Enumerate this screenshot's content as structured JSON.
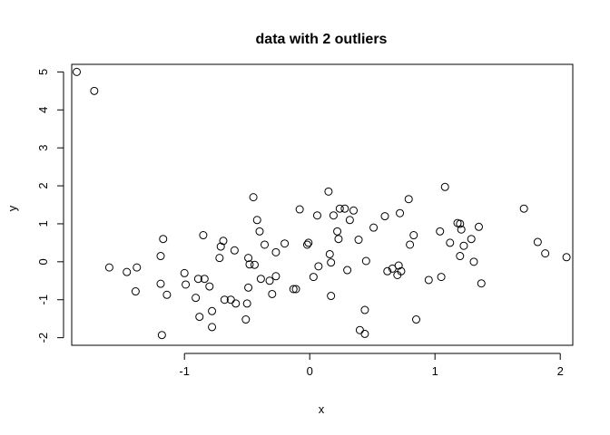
{
  "chart_data": {
    "type": "scatter",
    "title": "data with 2 outliers",
    "xlabel": "x",
    "ylabel": "y",
    "xlim": [
      -1.9,
      2.1
    ],
    "ylim": [
      -2.2,
      5.2
    ],
    "xticks": [
      -1,
      0,
      1,
      2
    ],
    "yticks": [
      -2,
      -1,
      0,
      1,
      2,
      3,
      4,
      5
    ],
    "grid": false,
    "legend": "none",
    "marker": "open-circle",
    "points": [
      [
        -1.86,
        5.0
      ],
      [
        -1.72,
        4.5
      ],
      [
        -1.6,
        -0.15
      ],
      [
        -1.46,
        -0.27
      ],
      [
        -1.39,
        -0.78
      ],
      [
        -1.38,
        -0.15
      ],
      [
        -1.19,
        0.15
      ],
      [
        -1.19,
        -0.58
      ],
      [
        -1.17,
        0.6
      ],
      [
        -1.18,
        -1.93
      ],
      [
        -1.14,
        -0.87
      ],
      [
        -1.0,
        -0.3
      ],
      [
        -0.99,
        -0.6
      ],
      [
        -0.91,
        -0.95
      ],
      [
        -0.89,
        -0.45
      ],
      [
        -0.88,
        -1.45
      ],
      [
        -0.85,
        0.7
      ],
      [
        -0.84,
        -0.45
      ],
      [
        -0.8,
        -0.65
      ],
      [
        -0.78,
        -1.72
      ],
      [
        -0.78,
        -1.3
      ],
      [
        -0.72,
        0.1
      ],
      [
        -0.71,
        0.4
      ],
      [
        -0.69,
        0.55
      ],
      [
        -0.68,
        -1.0
      ],
      [
        -0.63,
        -1.0
      ],
      [
        -0.6,
        0.3
      ],
      [
        -0.59,
        -1.1
      ],
      [
        -0.51,
        -1.52
      ],
      [
        -0.5,
        -1.1
      ],
      [
        -0.49,
        -0.68
      ],
      [
        -0.49,
        0.1
      ],
      [
        -0.48,
        -0.07
      ],
      [
        -0.45,
        1.7
      ],
      [
        -0.44,
        -0.08
      ],
      [
        -0.42,
        1.1
      ],
      [
        -0.4,
        0.8
      ],
      [
        -0.39,
        -0.45
      ],
      [
        -0.36,
        0.45
      ],
      [
        -0.32,
        -0.5
      ],
      [
        -0.3,
        -0.85
      ],
      [
        -0.27,
        0.25
      ],
      [
        -0.27,
        -0.38
      ],
      [
        -0.2,
        0.48
      ],
      [
        -0.13,
        -0.72
      ],
      [
        -0.11,
        -0.72
      ],
      [
        -0.08,
        1.38
      ],
      [
        -0.02,
        0.45
      ],
      [
        -0.01,
        0.5
      ],
      [
        0.03,
        -0.4
      ],
      [
        0.06,
        1.22
      ],
      [
        0.07,
        -0.12
      ],
      [
        0.15,
        1.85
      ],
      [
        0.16,
        0.2
      ],
      [
        0.17,
        -0.9
      ],
      [
        0.17,
        -0.02
      ],
      [
        0.19,
        1.22
      ],
      [
        0.22,
        0.8
      ],
      [
        0.23,
        0.6
      ],
      [
        0.24,
        1.4
      ],
      [
        0.28,
        1.4
      ],
      [
        0.3,
        -0.22
      ],
      [
        0.32,
        1.1
      ],
      [
        0.35,
        1.35
      ],
      [
        0.39,
        0.58
      ],
      [
        0.4,
        -1.8
      ],
      [
        0.44,
        -1.27
      ],
      [
        0.45,
        0.02
      ],
      [
        0.44,
        -1.9
      ],
      [
        0.51,
        0.9
      ],
      [
        0.6,
        1.2
      ],
      [
        0.62,
        -0.25
      ],
      [
        0.66,
        -0.18
      ],
      [
        0.7,
        -0.35
      ],
      [
        0.71,
        -0.1
      ],
      [
        0.72,
        1.28
      ],
      [
        0.73,
        -0.25
      ],
      [
        0.79,
        1.65
      ],
      [
        0.8,
        0.45
      ],
      [
        0.83,
        0.7
      ],
      [
        0.85,
        -1.52
      ],
      [
        0.95,
        -0.48
      ],
      [
        1.04,
        0.8
      ],
      [
        1.05,
        -0.4
      ],
      [
        1.08,
        1.97
      ],
      [
        1.12,
        0.5
      ],
      [
        1.18,
        1.02
      ],
      [
        1.2,
        0.15
      ],
      [
        1.2,
        1.0
      ],
      [
        1.21,
        0.85
      ],
      [
        1.23,
        0.42
      ],
      [
        1.29,
        0.6
      ],
      [
        1.31,
        0.0
      ],
      [
        1.35,
        0.92
      ],
      [
        1.37,
        -0.57
      ],
      [
        1.71,
        1.4
      ],
      [
        1.82,
        0.52
      ],
      [
        1.88,
        0.22
      ],
      [
        2.05,
        0.12
      ]
    ]
  }
}
